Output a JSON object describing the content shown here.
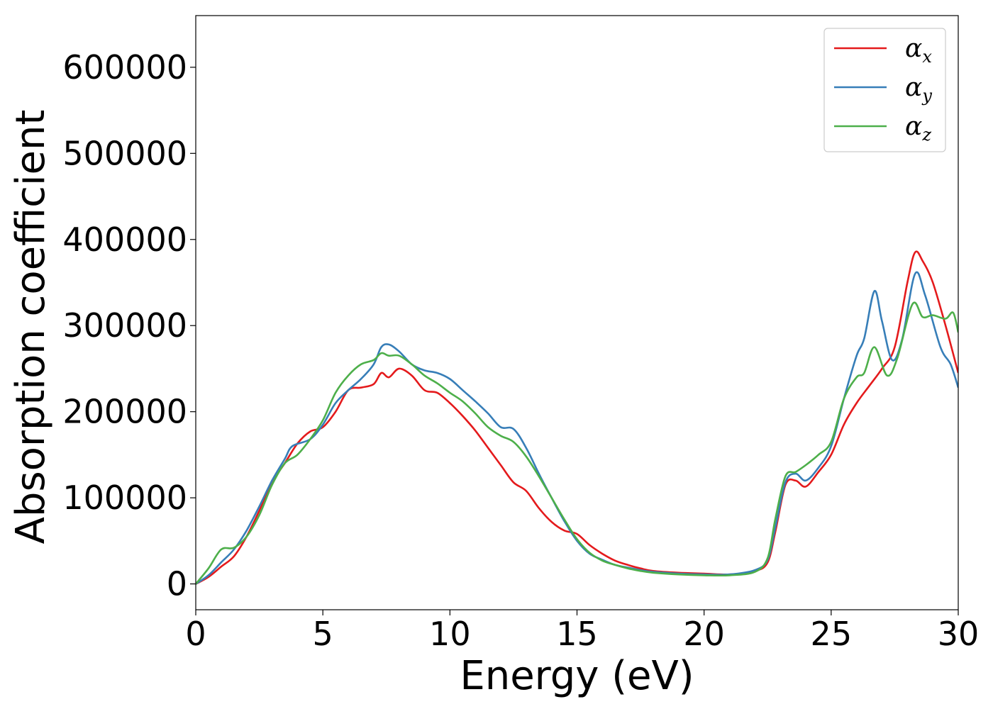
{
  "chart_data": {
    "type": "line",
    "xlabel": "Energy (eV)",
    "ylabel": "Absorption coefficient",
    "xlim": [
      0,
      30
    ],
    "ylim": [
      -30000,
      660000
    ],
    "xticks": [
      0,
      5,
      10,
      15,
      20,
      25,
      30
    ],
    "xtick_labels": [
      "0",
      "5",
      "10",
      "15",
      "20",
      "25",
      "30"
    ],
    "yticks": [
      0,
      100000,
      200000,
      300000,
      400000,
      500000,
      600000
    ],
    "ytick_labels": [
      "0",
      "100000",
      "200000",
      "300000",
      "400000",
      "500000",
      "600000"
    ],
    "grid": false,
    "legend_position": "top-right",
    "series": [
      {
        "name": "αx",
        "symbol": "α",
        "subscript": "x",
        "color": "#e41a1c",
        "points": [
          [
            0,
            0
          ],
          [
            0.5,
            8000
          ],
          [
            1,
            20000
          ],
          [
            1.5,
            32000
          ],
          [
            2,
            55000
          ],
          [
            2.5,
            85000
          ],
          [
            3,
            118000
          ],
          [
            3.5,
            140000
          ],
          [
            4,
            163000
          ],
          [
            4.5,
            177000
          ],
          [
            5,
            182000
          ],
          [
            5.5,
            200000
          ],
          [
            6,
            225000
          ],
          [
            6.5,
            228000
          ],
          [
            7,
            232000
          ],
          [
            7.3,
            245000
          ],
          [
            7.6,
            240000
          ],
          [
            8,
            250000
          ],
          [
            8.5,
            242000
          ],
          [
            9,
            225000
          ],
          [
            9.5,
            222000
          ],
          [
            10,
            210000
          ],
          [
            10.5,
            195000
          ],
          [
            11,
            178000
          ],
          [
            11.5,
            158000
          ],
          [
            12,
            138000
          ],
          [
            12.5,
            118000
          ],
          [
            13,
            108000
          ],
          [
            13.5,
            88000
          ],
          [
            14,
            72000
          ],
          [
            14.5,
            62000
          ],
          [
            15,
            58000
          ],
          [
            15.5,
            45000
          ],
          [
            16,
            35000
          ],
          [
            16.5,
            27000
          ],
          [
            17,
            22000
          ],
          [
            17.5,
            18000
          ],
          [
            18,
            15000
          ],
          [
            19,
            13000
          ],
          [
            20,
            12000
          ],
          [
            21,
            11000
          ],
          [
            22,
            15000
          ],
          [
            22.5,
            25000
          ],
          [
            22.8,
            60000
          ],
          [
            23.2,
            115000
          ],
          [
            23.6,
            120000
          ],
          [
            24,
            113000
          ],
          [
            24.5,
            130000
          ],
          [
            25,
            150000
          ],
          [
            25.5,
            185000
          ],
          [
            26,
            210000
          ],
          [
            26.5,
            230000
          ],
          [
            27,
            250000
          ],
          [
            27.5,
            275000
          ],
          [
            28,
            350000
          ],
          [
            28.3,
            385000
          ],
          [
            28.6,
            375000
          ],
          [
            29,
            350000
          ],
          [
            29.5,
            300000
          ],
          [
            30,
            245000
          ]
        ]
      },
      {
        "name": "αy",
        "symbol": "α",
        "subscript": "y",
        "color": "#377eb8",
        "points": [
          [
            0,
            0
          ],
          [
            0.5,
            10000
          ],
          [
            1,
            25000
          ],
          [
            1.5,
            40000
          ],
          [
            2,
            62000
          ],
          [
            2.5,
            90000
          ],
          [
            3,
            120000
          ],
          [
            3.5,
            145000
          ],
          [
            3.8,
            160000
          ],
          [
            4.5,
            168000
          ],
          [
            5,
            185000
          ],
          [
            5.5,
            210000
          ],
          [
            6,
            225000
          ],
          [
            6.5,
            238000
          ],
          [
            7,
            255000
          ],
          [
            7.3,
            275000
          ],
          [
            7.6,
            278000
          ],
          [
            8,
            270000
          ],
          [
            8.5,
            255000
          ],
          [
            9,
            248000
          ],
          [
            9.5,
            245000
          ],
          [
            10,
            238000
          ],
          [
            10.5,
            225000
          ],
          [
            11,
            212000
          ],
          [
            11.5,
            198000
          ],
          [
            12,
            182000
          ],
          [
            12.5,
            180000
          ],
          [
            13,
            158000
          ],
          [
            13.5,
            128000
          ],
          [
            14,
            100000
          ],
          [
            14.5,
            73000
          ],
          [
            15,
            50000
          ],
          [
            15.5,
            35000
          ],
          [
            16,
            28000
          ],
          [
            16.5,
            22000
          ],
          [
            17,
            19000
          ],
          [
            17.5,
            16000
          ],
          [
            18,
            14000
          ],
          [
            19,
            12000
          ],
          [
            20,
            11000
          ],
          [
            21,
            11000
          ],
          [
            22,
            16000
          ],
          [
            22.5,
            28000
          ],
          [
            22.8,
            65000
          ],
          [
            23.2,
            118000
          ],
          [
            23.6,
            128000
          ],
          [
            24,
            120000
          ],
          [
            24.5,
            135000
          ],
          [
            25,
            160000
          ],
          [
            25.5,
            215000
          ],
          [
            26,
            265000
          ],
          [
            26.3,
            285000
          ],
          [
            26.7,
            340000
          ],
          [
            27,
            305000
          ],
          [
            27.4,
            260000
          ],
          [
            27.8,
            285000
          ],
          [
            28.3,
            360000
          ],
          [
            28.7,
            335000
          ],
          [
            29.3,
            275000
          ],
          [
            29.7,
            255000
          ],
          [
            30,
            228000
          ]
        ]
      },
      {
        "name": "αz",
        "symbol": "α",
        "subscript": "z",
        "color": "#4daf4a",
        "points": [
          [
            0,
            0
          ],
          [
            0.5,
            18000
          ],
          [
            1,
            40000
          ],
          [
            1.5,
            42000
          ],
          [
            2,
            55000
          ],
          [
            2.5,
            80000
          ],
          [
            3,
            115000
          ],
          [
            3.5,
            140000
          ],
          [
            4,
            150000
          ],
          [
            4.5,
            168000
          ],
          [
            5,
            190000
          ],
          [
            5.5,
            222000
          ],
          [
            6,
            242000
          ],
          [
            6.5,
            255000
          ],
          [
            7,
            260000
          ],
          [
            7.3,
            268000
          ],
          [
            7.6,
            265000
          ],
          [
            8,
            265000
          ],
          [
            8.5,
            255000
          ],
          [
            9,
            242000
          ],
          [
            9.5,
            233000
          ],
          [
            10,
            222000
          ],
          [
            10.5,
            212000
          ],
          [
            11,
            198000
          ],
          [
            11.5,
            182000
          ],
          [
            12,
            172000
          ],
          [
            12.5,
            165000
          ],
          [
            13,
            148000
          ],
          [
            13.5,
            125000
          ],
          [
            14,
            100000
          ],
          [
            14.5,
            75000
          ],
          [
            15,
            52000
          ],
          [
            15.5,
            36000
          ],
          [
            16,
            27000
          ],
          [
            16.5,
            22000
          ],
          [
            17,
            18000
          ],
          [
            17.5,
            15000
          ],
          [
            18,
            13000
          ],
          [
            19,
            11000
          ],
          [
            20,
            10000
          ],
          [
            21,
            10000
          ],
          [
            22,
            14000
          ],
          [
            22.5,
            30000
          ],
          [
            22.8,
            75000
          ],
          [
            23.2,
            125000
          ],
          [
            23.6,
            130000
          ],
          [
            24,
            138000
          ],
          [
            24.5,
            150000
          ],
          [
            25,
            165000
          ],
          [
            25.5,
            215000
          ],
          [
            26,
            240000
          ],
          [
            26.3,
            245000
          ],
          [
            26.7,
            275000
          ],
          [
            27.2,
            242000
          ],
          [
            27.6,
            262000
          ],
          [
            28.2,
            325000
          ],
          [
            28.6,
            310000
          ],
          [
            29,
            312000
          ],
          [
            29.5,
            308000
          ],
          [
            29.8,
            315000
          ],
          [
            30,
            292000
          ]
        ]
      }
    ]
  }
}
